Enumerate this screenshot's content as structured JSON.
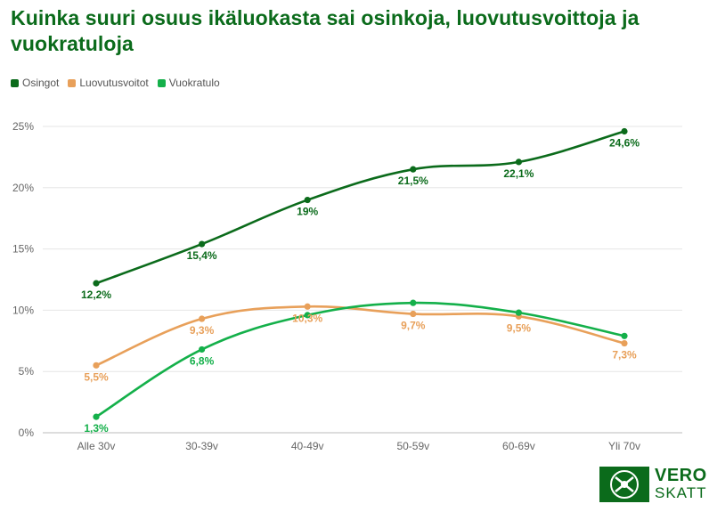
{
  "chart_data": {
    "type": "line",
    "title": "Kuinka suuri osuus ikäluokasta sai osinkoja, luovutusvoittoja ja vuokratuloja",
    "categories": [
      "Alle 30v",
      "30-39v",
      "40-49v",
      "50-59v",
      "60-69v",
      "Yli 70v"
    ],
    "yticks": [
      "0%",
      "5%",
      "10%",
      "15%",
      "20%",
      "25%"
    ],
    "ylim": [
      0,
      25
    ],
    "grid": true,
    "legend_position": "top-left",
    "series": [
      {
        "name": "Osingot",
        "color": "#0b6b1b",
        "values": [
          12.2,
          15.4,
          19,
          21.5,
          22.1,
          24.6
        ],
        "labels": [
          "12,2%",
          "15,4%",
          "19%",
          "21,5%",
          "22,1%",
          "24,6%"
        ]
      },
      {
        "name": "Luovutusvoitot",
        "color": "#e8a05a",
        "values": [
          5.5,
          9.3,
          10.3,
          9.7,
          9.5,
          7.3
        ],
        "labels": [
          "5,5%",
          "9,3%",
          "10,3%",
          "9,7%",
          "9,5%",
          "7,3%"
        ]
      },
      {
        "name": "Vuokratulo",
        "color": "#14b04a",
        "values": [
          1.3,
          6.8,
          9.6,
          10.6,
          9.8,
          7.9
        ],
        "labels": [
          "1,3%",
          "6,8%",
          "",
          "",
          "",
          ""
        ]
      }
    ]
  },
  "logo": {
    "line1": "VERO",
    "line2": "SKATT"
  }
}
